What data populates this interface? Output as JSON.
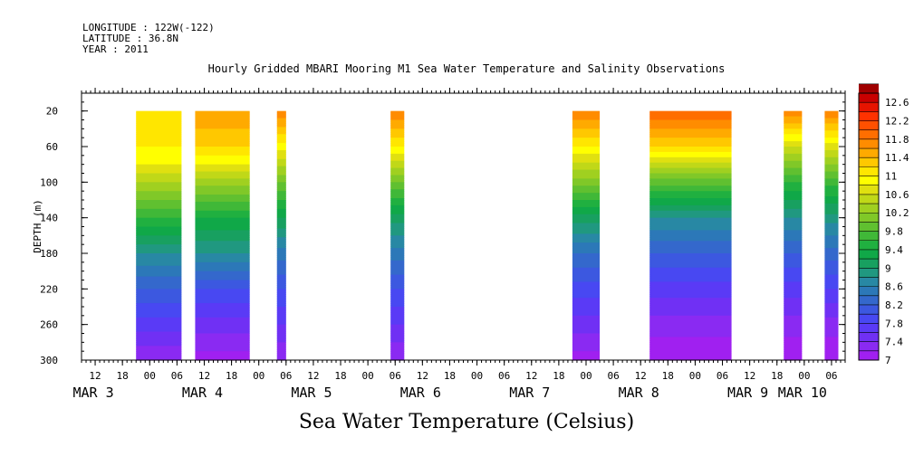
{
  "header": {
    "longitude": "LONGITUDE : 122W(-122)",
    "latitude": "LATITUDE : 36.8N",
    "year": "YEAR : 2011"
  },
  "chart_data": {
    "type": "heatmap",
    "title": "Hourly Gridded MBARI Mooring M1 Sea Water Temperature and Salinity Observations",
    "xlabel": "Sea Water Temperature (Celsius)",
    "ylabel": "DEPTH (m)",
    "x_unit": "hours since MAR 3 00:00 (2011)",
    "xlim": [
      9,
      177
    ],
    "ylim": [
      300,
      0
    ],
    "y_ticks": [
      20,
      60,
      100,
      140,
      180,
      220,
      260,
      300
    ],
    "hour_ticks": [
      {
        "h": 12,
        "label": "12"
      },
      {
        "h": 18,
        "label": "18"
      },
      {
        "h": 24,
        "label": "00"
      },
      {
        "h": 30,
        "label": "06"
      },
      {
        "h": 36,
        "label": "12"
      },
      {
        "h": 42,
        "label": "18"
      },
      {
        "h": 48,
        "label": "00"
      },
      {
        "h": 54,
        "label": "06"
      },
      {
        "h": 60,
        "label": "12"
      },
      {
        "h": 66,
        "label": "18"
      },
      {
        "h": 72,
        "label": "00"
      },
      {
        "h": 78,
        "label": "06"
      },
      {
        "h": 84,
        "label": "12"
      },
      {
        "h": 90,
        "label": "18"
      },
      {
        "h": 96,
        "label": "00"
      },
      {
        "h": 102,
        "label": "06"
      },
      {
        "h": 108,
        "label": "12"
      },
      {
        "h": 114,
        "label": "18"
      },
      {
        "h": 120,
        "label": "00"
      },
      {
        "h": 126,
        "label": "06"
      },
      {
        "h": 132,
        "label": "12"
      },
      {
        "h": 138,
        "label": "18"
      },
      {
        "h": 144,
        "label": "00"
      },
      {
        "h": 150,
        "label": "06"
      },
      {
        "h": 156,
        "label": "12"
      },
      {
        "h": 162,
        "label": "18"
      },
      {
        "h": 168,
        "label": "00"
      },
      {
        "h": 174,
        "label": "06"
      }
    ],
    "date_labels": [
      {
        "h": 12,
        "label": "MAR  3"
      },
      {
        "h": 36,
        "label": "MAR  4"
      },
      {
        "h": 60,
        "label": "MAR  5"
      },
      {
        "h": 84,
        "label": "MAR  6"
      },
      {
        "h": 108,
        "label": "MAR  7"
      },
      {
        "h": 132,
        "label": "MAR  8"
      },
      {
        "h": 156,
        "label": "MAR  9"
      },
      {
        "h": 168,
        "label": "MAR 10"
      }
    ],
    "data_segments": [
      {
        "start": 21.0,
        "end": 31.0,
        "surface_temp": 11.2,
        "depth_temp": [
          [
            20,
            11.2
          ],
          [
            60,
            11.0
          ],
          [
            80,
            10.8
          ],
          [
            100,
            10.4
          ],
          [
            140,
            9.6
          ],
          [
            180,
            8.8
          ],
          [
            220,
            8.2
          ],
          [
            260,
            7.7
          ],
          [
            300,
            7.2
          ]
        ]
      },
      {
        "start": 34.0,
        "end": 46.0,
        "surface_temp": 11.6,
        "depth_temp": [
          [
            20,
            11.6
          ],
          [
            60,
            11.2
          ],
          [
            80,
            10.8
          ],
          [
            100,
            10.3
          ],
          [
            140,
            9.4
          ],
          [
            180,
            8.8
          ],
          [
            220,
            8.0
          ],
          [
            260,
            7.5
          ],
          [
            300,
            7.1
          ]
        ]
      },
      {
        "start": 52.0,
        "end": 54.0,
        "surface_temp": 11.8,
        "depth_temp": [
          [
            20,
            11.8
          ],
          [
            60,
            10.9
          ],
          [
            100,
            10.0
          ],
          [
            140,
            9.2
          ],
          [
            180,
            8.5
          ],
          [
            220,
            8.0
          ],
          [
            260,
            7.6
          ],
          [
            300,
            7.2
          ]
        ]
      },
      {
        "start": 77.0,
        "end": 80.0,
        "surface_temp": 11.8,
        "depth_temp": [
          [
            20,
            11.8
          ],
          [
            60,
            11.0
          ],
          [
            100,
            10.0
          ],
          [
            140,
            9.1
          ],
          [
            180,
            8.5
          ],
          [
            220,
            8.0
          ],
          [
            260,
            7.6
          ],
          [
            300,
            7.2
          ]
        ]
      },
      {
        "start": 117.0,
        "end": 123.0,
        "surface_temp": 11.8,
        "depth_temp": [
          [
            20,
            11.8
          ],
          [
            60,
            11.0
          ],
          [
            100,
            10.1
          ],
          [
            140,
            9.1
          ],
          [
            180,
            8.4
          ],
          [
            220,
            7.9
          ],
          [
            260,
            7.5
          ],
          [
            300,
            7.1
          ]
        ]
      },
      {
        "start": 134.0,
        "end": 152.0,
        "surface_temp": 12.0,
        "depth_temp": [
          [
            20,
            12.0
          ],
          [
            60,
            11.2
          ],
          [
            100,
            9.9
          ],
          [
            140,
            8.8
          ],
          [
            180,
            8.2
          ],
          [
            220,
            7.7
          ],
          [
            260,
            7.3
          ],
          [
            300,
            7.0
          ]
        ]
      },
      {
        "start": 163.5,
        "end": 167.5,
        "surface_temp": 11.8,
        "depth_temp": [
          [
            20,
            11.8
          ],
          [
            60,
            10.6
          ],
          [
            100,
            9.6
          ],
          [
            140,
            8.8
          ],
          [
            180,
            8.2
          ],
          [
            220,
            7.7
          ],
          [
            260,
            7.3
          ],
          [
            300,
            7.0
          ]
        ]
      },
      {
        "start": 172.5,
        "end": 175.5,
        "surface_temp": 11.8,
        "depth_temp": [
          [
            20,
            11.8
          ],
          [
            60,
            10.7
          ],
          [
            100,
            9.7
          ],
          [
            140,
            8.9
          ],
          [
            180,
            8.3
          ],
          [
            220,
            7.8
          ],
          [
            260,
            7.3
          ],
          [
            300,
            7.0
          ]
        ]
      }
    ],
    "colorbar": {
      "min": 7.0,
      "max": 12.8,
      "step": 0.2,
      "labels": [
        "7",
        "7.4",
        "7.8",
        "8.2",
        "8.6",
        "9",
        "9.4",
        "9.8",
        "10.2",
        "10.6",
        "11",
        "11.4",
        "11.8",
        "12.2",
        "12.6"
      ],
      "colors": [
        "#a020f0",
        "#8a2af2",
        "#7030f4",
        "#5a3af6",
        "#4848f2",
        "#3c58e0",
        "#3468cc",
        "#2c78b8",
        "#2888a4",
        "#209880",
        "#18a060",
        "#10a848",
        "#20b040",
        "#40b838",
        "#60c030",
        "#80c828",
        "#a0d020",
        "#c0d818",
        "#e0e010",
        "#ffff00",
        "#ffe600",
        "#ffc800",
        "#ffaa00",
        "#ff8c00",
        "#ff6e00",
        "#ff5000",
        "#ff3200",
        "#e61400",
        "#c80000",
        "#a00000"
      ]
    }
  }
}
